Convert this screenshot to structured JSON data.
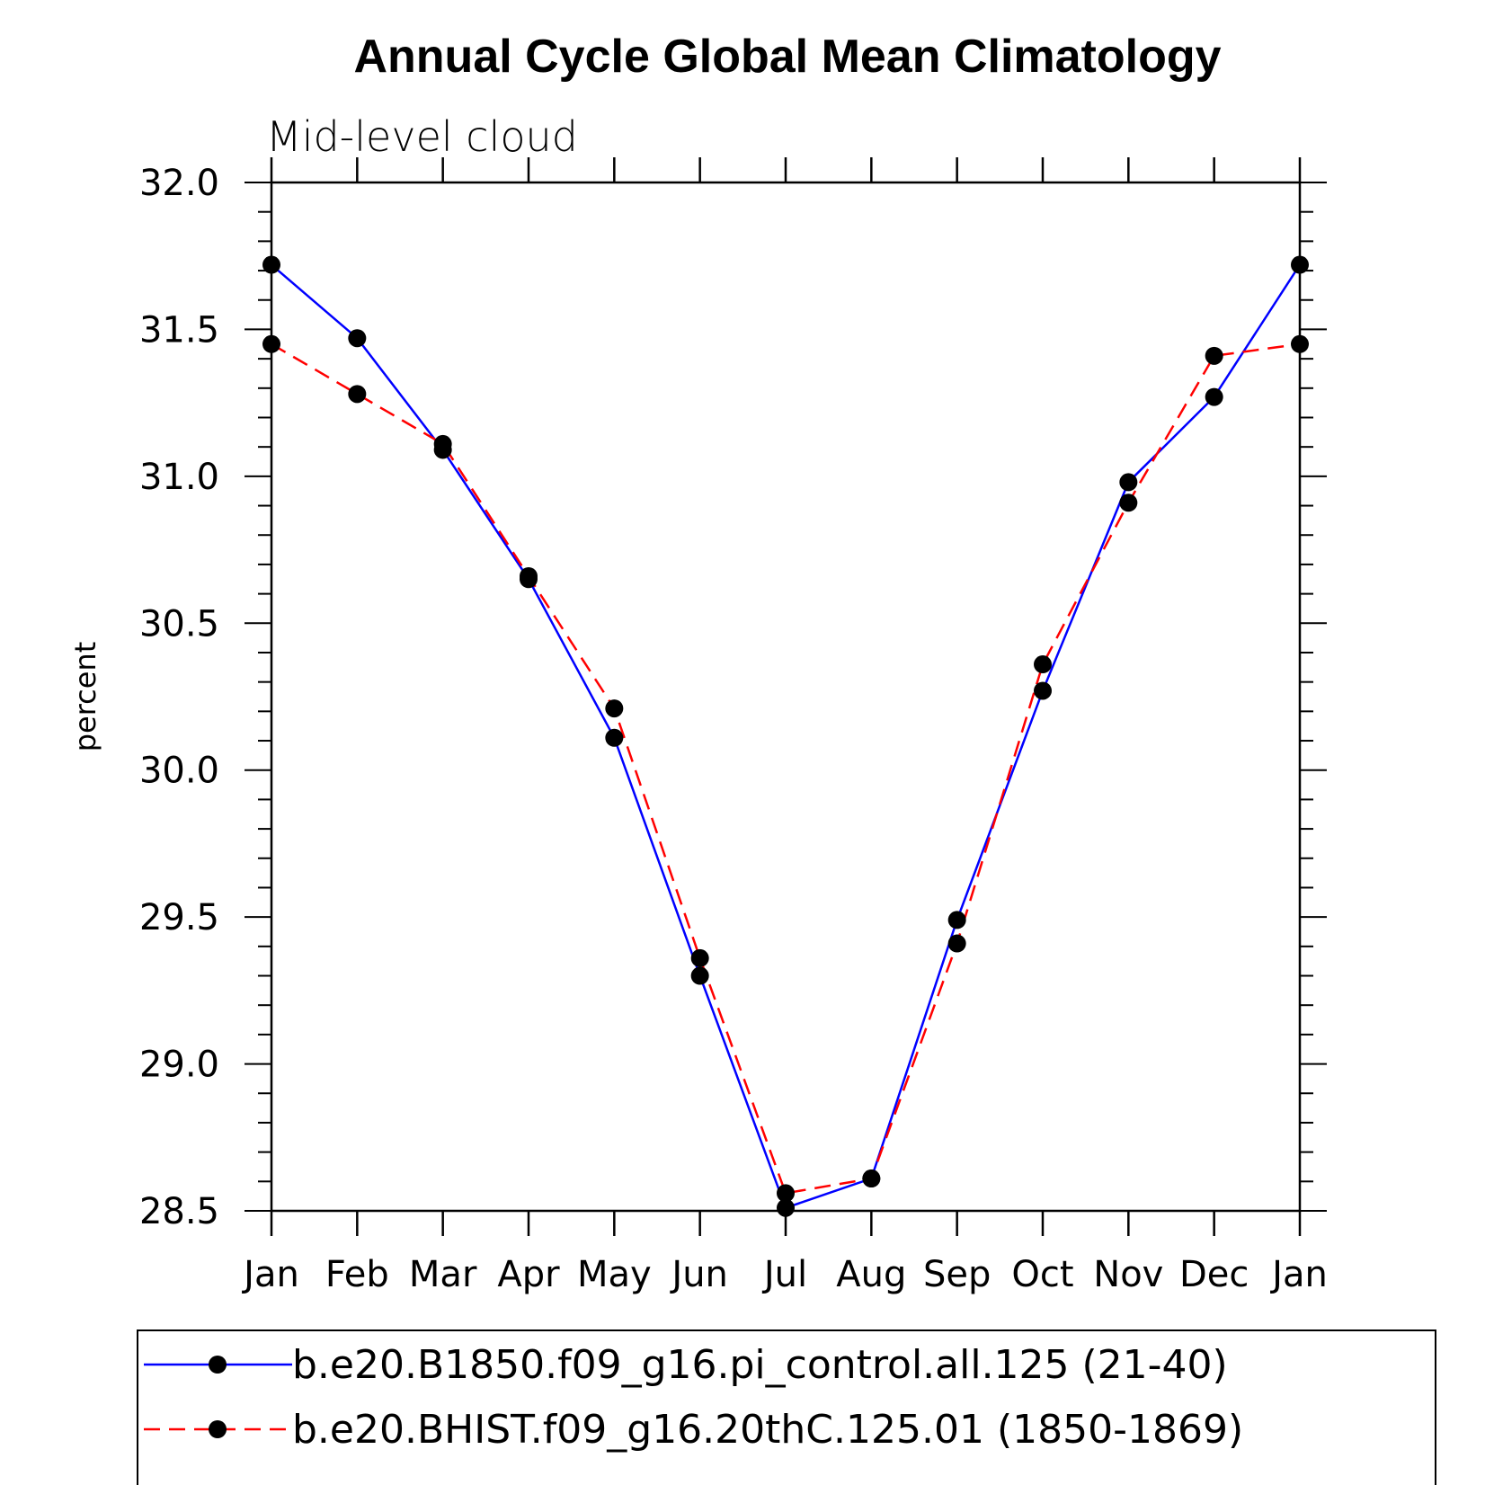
{
  "chart_data": {
    "type": "line",
    "title": "Annual Cycle Global Mean Climatology",
    "subtitle": "Mid-level cloud",
    "xlabel": "",
    "ylabel": "percent",
    "ylim": [
      28.5,
      32.0
    ],
    "y_ticks": [
      "32.0",
      "31.5",
      "31.0",
      "30.5",
      "30.0",
      "29.5",
      "29.0",
      "28.5"
    ],
    "categories": [
      "Jan",
      "Feb",
      "Mar",
      "Apr",
      "May",
      "Jun",
      "Jul",
      "Aug",
      "Sep",
      "Oct",
      "Nov",
      "Dec",
      "Jan"
    ],
    "series": [
      {
        "name": "b.e20.B1850.f09_g16.pi_control.all.125 (21-40)",
        "color": "#0000ff",
        "style": "solid",
        "values": [
          31.72,
          31.47,
          31.09,
          30.65,
          30.11,
          29.3,
          28.51,
          28.61,
          29.49,
          30.27,
          30.98,
          31.27,
          31.72
        ]
      },
      {
        "name": "b.e20.BHIST.f09_g16.20thC.125.01 (1850-1869)",
        "color": "#ff0000",
        "style": "dashed",
        "values": [
          31.45,
          31.28,
          31.11,
          30.66,
          30.21,
          29.36,
          28.56,
          28.61,
          29.41,
          30.36,
          30.91,
          31.41,
          31.45
        ]
      }
    ],
    "legend_position": "bottom",
    "grid": false
  }
}
